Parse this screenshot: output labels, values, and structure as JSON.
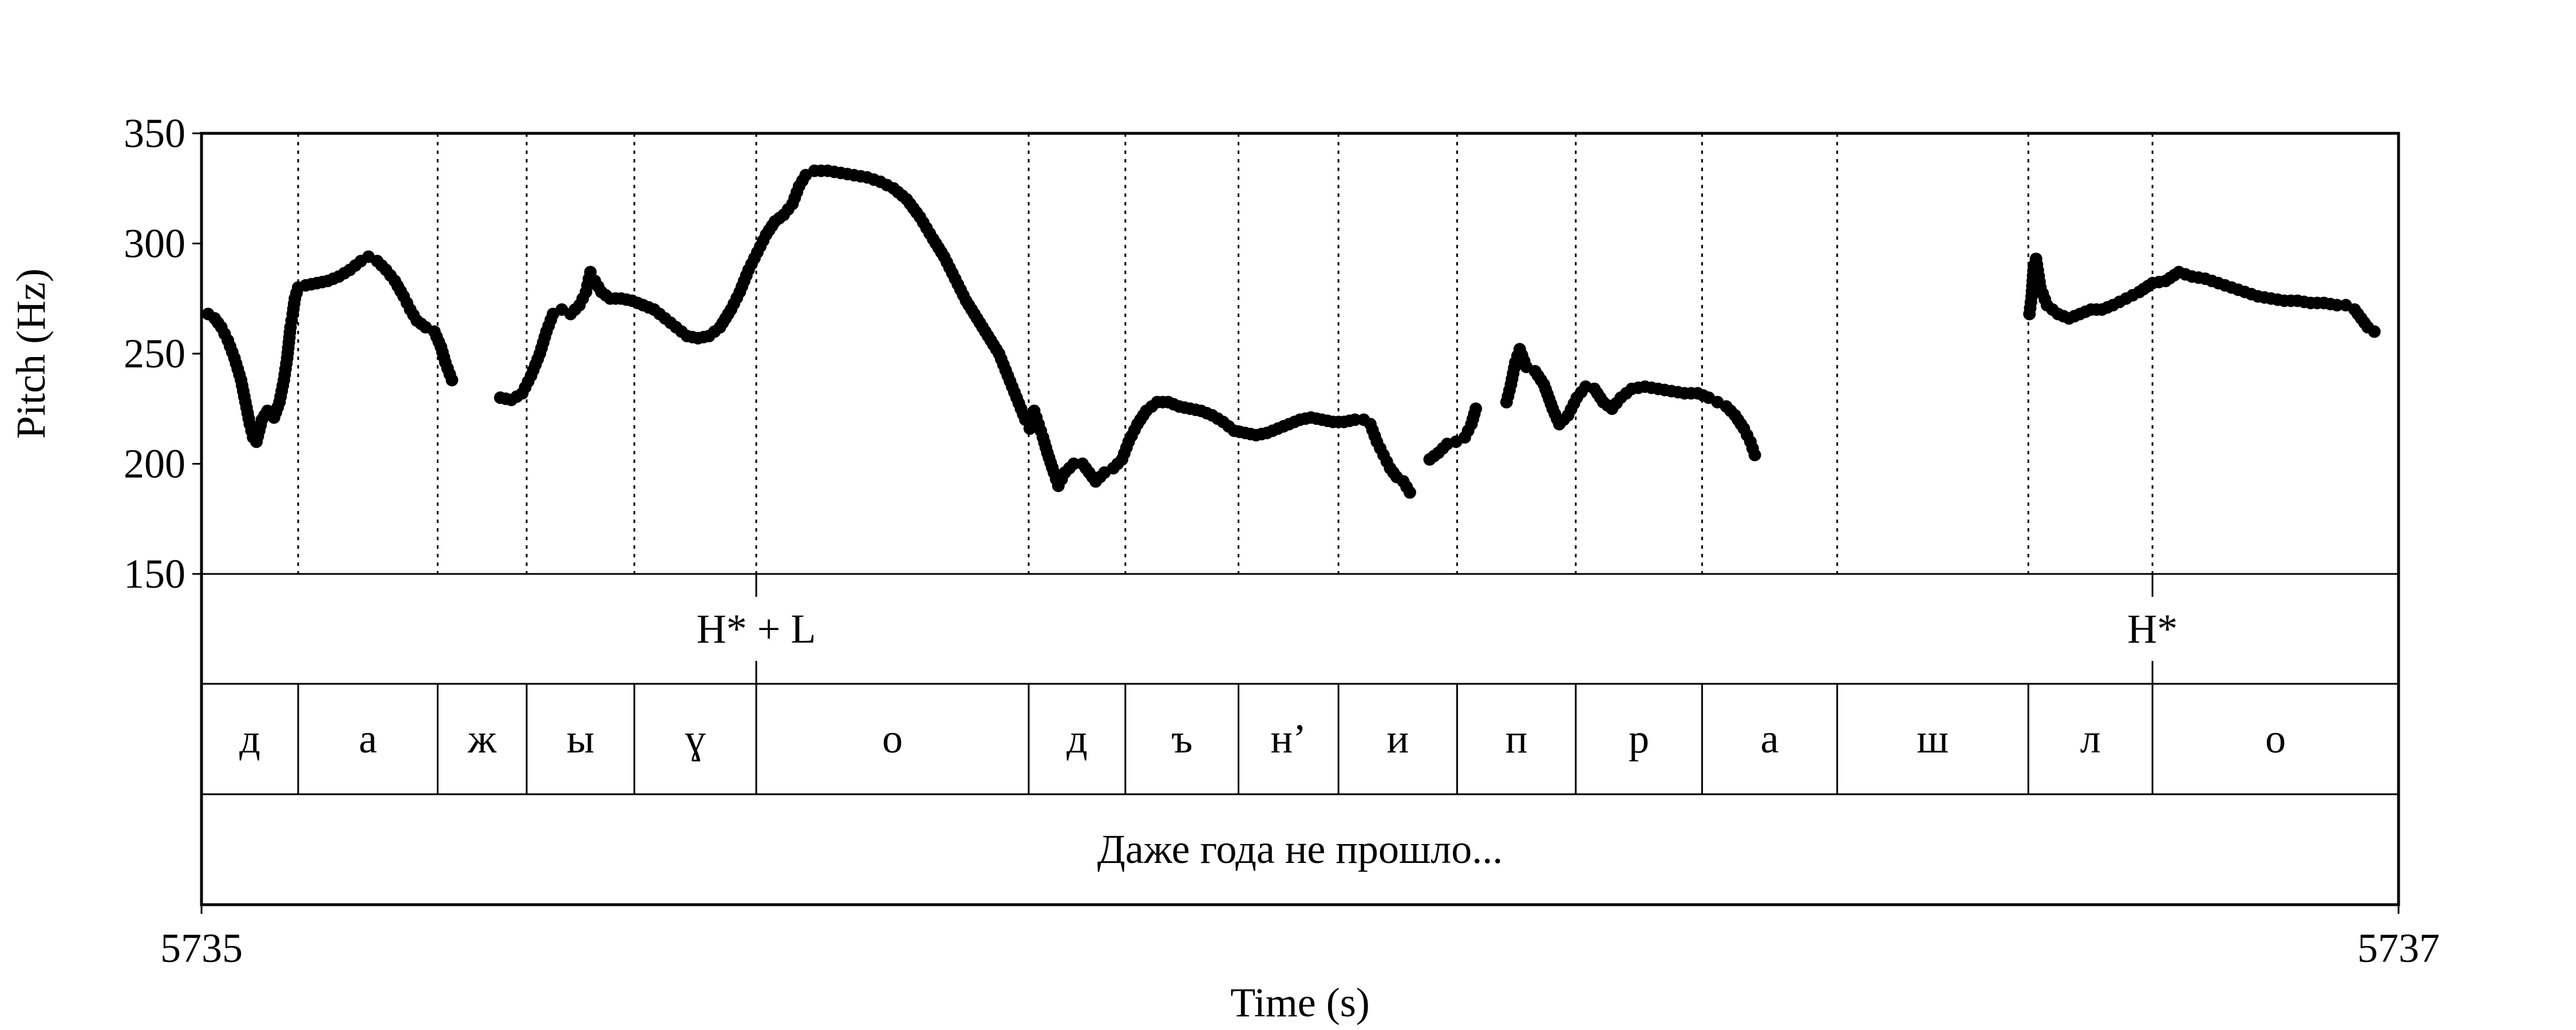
{
  "chart_data": {
    "type": "scatter",
    "title": "",
    "xlabel": "Time (s)",
    "ylabel": "Pitch (Hz)",
    "xlim": [
      5735,
      5737
    ],
    "ylim": [
      150,
      350
    ],
    "x_ticks": [
      "5735",
      "5737"
    ],
    "y_ticks": [
      "150",
      "200",
      "250",
      "300",
      "350"
    ],
    "grid": false,
    "series": [
      {
        "color": "#000000",
        "segments": [
          [
            [
              5735.006,
              268
            ],
            [
              5735.012,
              266
            ],
            [
              5735.018,
              262
            ],
            [
              5735.024,
              256
            ],
            [
              5735.03,
              248
            ],
            [
              5735.036,
              238
            ],
            [
              5735.04,
              228
            ],
            [
              5735.044,
              218
            ],
            [
              5735.047,
              212
            ],
            [
              5735.05,
              210
            ],
            [
              5735.055,
              220
            ],
            [
              5735.06,
              224
            ],
            [
              5735.066,
              221
            ],
            [
              5735.071,
              228
            ],
            [
              5735.075,
              238
            ],
            [
              5735.078,
              248
            ],
            [
              5735.081,
              262
            ],
            [
              5735.083,
              268
            ],
            [
              5735.085,
              275
            ],
            [
              5735.088,
              280
            ],
            [
              5735.095,
              281
            ],
            [
              5735.105,
              282
            ],
            [
              5735.115,
              283
            ],
            [
              5735.125,
              285
            ],
            [
              5735.135,
              288
            ],
            [
              5735.145,
              292
            ],
            [
              5735.152,
              294
            ],
            [
              5735.16,
              292
            ],
            [
              5735.168,
              288
            ],
            [
              5735.176,
              283
            ],
            [
              5735.184,
              276
            ],
            [
              5735.19,
              270
            ],
            [
              5735.196,
              265
            ],
            [
              5735.204,
              262
            ],
            [
              5735.212,
              260
            ],
            [
              5735.218,
              253
            ],
            [
              5735.222,
              246
            ],
            [
              5735.228,
              238
            ]
          ],
          [
            [
              5735.272,
              230
            ],
            [
              5735.282,
              229
            ],
            [
              5735.292,
              232
            ],
            [
              5735.3,
              240
            ],
            [
              5735.308,
              250
            ],
            [
              5735.314,
              260
            ],
            [
              5735.32,
              268
            ],
            [
              5735.328,
              270
            ],
            [
              5735.336,
              268
            ],
            [
              5735.344,
              272
            ],
            [
              5735.35,
              278
            ],
            [
              5735.354,
              287
            ],
            [
              5735.358,
              283
            ],
            [
              5735.364,
              278
            ],
            [
              5735.372,
              275
            ],
            [
              5735.382,
              275
            ],
            [
              5735.392,
              274
            ],
            [
              5735.402,
              272
            ],
            [
              5735.412,
              270
            ],
            [
              5735.422,
              266
            ],
            [
              5735.432,
              262
            ],
            [
              5735.442,
              258
            ],
            [
              5735.452,
              257
            ],
            [
              5735.462,
              258
            ],
            [
              5735.472,
              262
            ],
            [
              5735.482,
              270
            ],
            [
              5735.49,
              278
            ],
            [
              5735.498,
              288
            ],
            [
              5735.506,
              296
            ],
            [
              5735.514,
              304
            ],
            [
              5735.522,
              310
            ],
            [
              5735.53,
              313
            ],
            [
              5735.538,
              318
            ],
            [
              5735.544,
              326
            ],
            [
              5735.55,
              331
            ],
            [
              5735.558,
              333
            ],
            [
              5735.57,
              333
            ],
            [
              5735.582,
              332
            ],
            [
              5735.594,
              331
            ],
            [
              5735.606,
              330
            ],
            [
              5735.618,
              328
            ],
            [
              5735.63,
              325
            ],
            [
              5735.642,
              320
            ],
            [
              5735.654,
              312
            ],
            [
              5735.666,
              302
            ],
            [
              5735.676,
              294
            ],
            [
              5735.686,
              284
            ],
            [
              5735.696,
              274
            ],
            [
              5735.706,
              266
            ],
            [
              5735.716,
              258
            ],
            [
              5735.726,
              250
            ],
            [
              5735.734,
              240
            ],
            [
              5735.742,
              230
            ],
            [
              5735.75,
              220
            ],
            [
              5735.754,
              216
            ],
            [
              5735.758,
              224
            ],
            [
              5735.762,
              218
            ],
            [
              5735.766,
              212
            ],
            [
              5735.77,
              205
            ],
            [
              5735.776,
              196
            ],
            [
              5735.78,
              190
            ],
            [
              5735.786,
              196
            ],
            [
              5735.794,
              200
            ],
            [
              5735.802,
              200
            ],
            [
              5735.808,
              196
            ],
            [
              5735.814,
              192
            ],
            [
              5735.822,
              196
            ],
            [
              5735.83,
              198
            ],
            [
              5735.838,
              202
            ],
            [
              5735.844,
              210
            ],
            [
              5735.852,
              218
            ],
            [
              5735.86,
              224
            ],
            [
              5735.87,
              228
            ],
            [
              5735.88,
              228
            ],
            [
              5735.89,
              226
            ],
            [
              5735.9,
              225
            ],
            [
              5735.91,
              224
            ],
            [
              5735.92,
              222
            ],
            [
              5735.93,
              219
            ],
            [
              5735.94,
              215
            ],
            [
              5735.95,
              214
            ],
            [
              5735.96,
              213
            ],
            [
              5735.97,
              214
            ],
            [
              5735.98,
              216
            ],
            [
              5735.99,
              218
            ],
            [
              5736.0,
              220
            ],
            [
              5736.01,
              221
            ],
            [
              5736.02,
              220
            ],
            [
              5736.03,
              219
            ],
            [
              5736.04,
              219
            ],
            [
              5736.05,
              220
            ],
            [
              5736.058,
              220
            ],
            [
              5736.064,
              218
            ],
            [
              5736.07,
              210
            ],
            [
              5736.076,
              204
            ],
            [
              5736.082,
              198
            ],
            [
              5736.088,
              194
            ],
            [
              5736.094,
              192
            ],
            [
              5736.1,
              187
            ]
          ],
          [
            [
              5736.118,
              202
            ],
            [
              5736.126,
              205
            ],
            [
              5736.134,
              209
            ],
            [
              5736.142,
              210
            ],
            [
              5736.15,
              212
            ],
            [
              5736.156,
              218
            ],
            [
              5736.16,
              225
            ]
          ],
          [
            [
              5736.188,
              228
            ],
            [
              5736.192,
              236
            ],
            [
              5736.196,
              246
            ],
            [
              5736.2,
              252
            ],
            [
              5736.206,
              244
            ],
            [
              5736.214,
              242
            ],
            [
              5736.222,
              236
            ],
            [
              5736.23,
              225
            ],
            [
              5736.236,
              218
            ],
            [
              5736.244,
              222
            ],
            [
              5736.252,
              230
            ],
            [
              5736.26,
              235
            ],
            [
              5736.268,
              234
            ],
            [
              5736.276,
              228
            ],
            [
              5736.284,
              225
            ],
            [
              5736.292,
              230
            ],
            [
              5736.302,
              234
            ],
            [
              5736.314,
              235
            ],
            [
              5736.326,
              234
            ],
            [
              5736.338,
              233
            ],
            [
              5736.35,
              232
            ],
            [
              5736.362,
              232
            ],
            [
              5736.372,
              230
            ],
            [
              5736.38,
              228
            ],
            [
              5736.388,
              226
            ],
            [
              5736.396,
              222
            ],
            [
              5736.404,
              216
            ],
            [
              5736.41,
              210
            ],
            [
              5736.414,
              204
            ]
          ],
          [
            [
              5736.664,
              268
            ],
            [
              5736.666,
              276
            ],
            [
              5736.668,
              290
            ],
            [
              5736.67,
              293
            ],
            [
              5736.674,
              280
            ],
            [
              5736.68,
              272
            ],
            [
              5736.69,
              268
            ],
            [
              5736.7,
              266
            ],
            [
              5736.71,
              268
            ],
            [
              5736.72,
              270
            ],
            [
              5736.73,
              270
            ],
            [
              5736.74,
              272
            ],
            [
              5736.752,
              275
            ],
            [
              5736.764,
              278
            ],
            [
              5736.776,
              282
            ],
            [
              5736.788,
              283
            ],
            [
              5736.8,
              287
            ],
            [
              5736.812,
              285
            ],
            [
              5736.824,
              284
            ],
            [
              5736.836,
              282
            ],
            [
              5736.848,
              280
            ],
            [
              5736.86,
              278
            ],
            [
              5736.872,
              276
            ],
            [
              5736.884,
              275
            ],
            [
              5736.896,
              274
            ],
            [
              5736.908,
              274
            ],
            [
              5736.92,
              273
            ],
            [
              5736.932,
              273
            ],
            [
              5736.944,
              272
            ],
            [
              5736.952,
              272
            ],
            [
              5736.96,
              270
            ],
            [
              5736.966,
              266
            ],
            [
              5736.972,
              262
            ],
            [
              5736.978,
              260
            ]
          ]
        ]
      }
    ],
    "boundaries": [
      5735.088,
      5735.215,
      5735.296,
      5735.394,
      5735.505,
      5735.753,
      5735.841,
      5735.944,
      5736.035,
      5736.143,
      5736.251,
      5736.366,
      5736.489,
      5736.663,
      5736.776
    ],
    "tiers": [
      {
        "name": "tones",
        "intervals": [
          {
            "x": 5735.505,
            "label": "H* + L"
          },
          {
            "x": 5736.776,
            "label": "H*"
          }
        ]
      },
      {
        "name": "segments",
        "intervals": [
          {
            "start": 5735.0,
            "end": 5735.088,
            "label": "д"
          },
          {
            "start": 5735.088,
            "end": 5735.215,
            "label": "а"
          },
          {
            "start": 5735.215,
            "end": 5735.296,
            "label": "ж"
          },
          {
            "start": 5735.296,
            "end": 5735.394,
            "label": "ы"
          },
          {
            "start": 5735.394,
            "end": 5735.505,
            "label": "ɣ"
          },
          {
            "start": 5735.505,
            "end": 5735.753,
            "label": "о"
          },
          {
            "start": 5735.753,
            "end": 5735.841,
            "label": "д"
          },
          {
            "start": 5735.841,
            "end": 5735.944,
            "label": "ъ"
          },
          {
            "start": 5735.944,
            "end": 5736.035,
            "label": "н’"
          },
          {
            "start": 5736.035,
            "end": 5736.143,
            "label": "и"
          },
          {
            "start": 5736.143,
            "end": 5736.251,
            "label": "п"
          },
          {
            "start": 5736.251,
            "end": 5736.366,
            "label": "р"
          },
          {
            "start": 5736.366,
            "end": 5736.489,
            "label": "а"
          },
          {
            "start": 5736.489,
            "end": 5736.663,
            "label": "ш"
          },
          {
            "start": 5736.663,
            "end": 5736.776,
            "label": "л"
          },
          {
            "start": 5736.776,
            "end": 5737.0,
            "label": "о"
          }
        ]
      },
      {
        "name": "sentence",
        "intervals": [
          {
            "start": 5735.0,
            "end": 5737.0,
            "label": "Даже года не прошло..."
          }
        ]
      }
    ]
  }
}
